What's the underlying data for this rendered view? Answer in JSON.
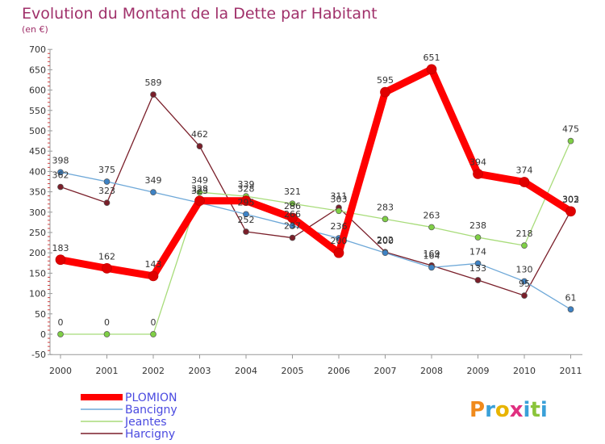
{
  "chart_data": {
    "type": "line",
    "title": "Evolution du Montant de la Dette par Habitant",
    "unit": "(en €)",
    "x": [
      "2000",
      "2001",
      "2002",
      "2003",
      "2004",
      "2005",
      "2006",
      "2007",
      "2008",
      "2009",
      "2010",
      "2011"
    ],
    "ylim": [
      -50,
      700
    ],
    "yticks": [
      -50,
      0,
      50,
      100,
      150,
      200,
      250,
      300,
      350,
      400,
      450,
      500,
      550,
      600,
      650,
      700
    ],
    "grid": false,
    "legend_position": "bottom-left",
    "series": [
      {
        "name": "Harcigny",
        "color": "#7a1f2a",
        "dot": "#7a1f2a",
        "values": [
          362,
          323,
          589,
          462,
          252,
          237,
          311,
          202,
          169,
          133,
          95,
          303
        ]
      },
      {
        "name": "Jeantes",
        "color": "#a8dc7a",
        "dot": "#7fcf45",
        "values": [
          0,
          0,
          0,
          349,
          339,
          321,
          303,
          283,
          263,
          238,
          218,
          475
        ]
      },
      {
        "name": "Bancigny",
        "color": "#6ea8d8",
        "dot": "#3e82c4",
        "values": [
          398,
          375,
          349,
          323,
          295,
          266,
          236,
          200,
          164,
          174,
          130,
          61
        ]
      },
      {
        "name": "PLOMION",
        "color": "#ff0000",
        "dot": "#e00000",
        "values": [
          183,
          162,
          143,
          328,
          328,
          286,
          200,
          595,
          651,
          394,
          374,
          302
        ]
      }
    ],
    "legend_order": [
      "PLOMION",
      "Bancigny",
      "Jeantes",
      "Harcigny"
    ],
    "legend_text_color": "#4a4ae0"
  },
  "logo": {
    "text": "Proxiti",
    "letters": [
      {
        "ch": "P",
        "color": "#f08a1c"
      },
      {
        "ch": "r",
        "color": "#3aa0d8"
      },
      {
        "ch": "o",
        "color": "#e8b400"
      },
      {
        "ch": "x",
        "color": "#e03080"
      },
      {
        "ch": "i",
        "color": "#3aa0d8"
      },
      {
        "ch": "t",
        "color": "#8ac43a"
      },
      {
        "ch": "i",
        "color": "#3aa0d8"
      }
    ]
  }
}
